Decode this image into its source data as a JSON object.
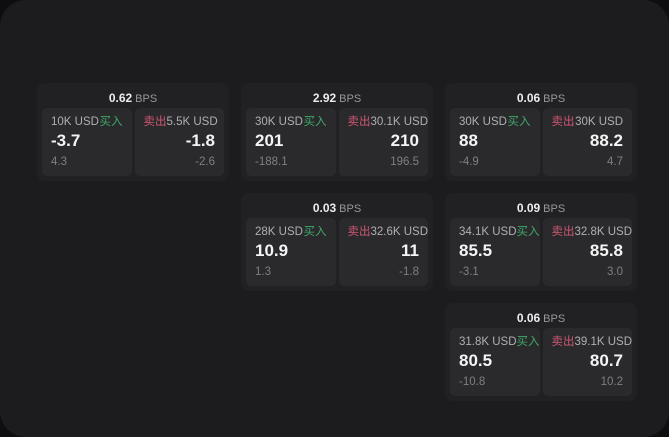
{
  "page": {
    "background": "#1c1c1e",
    "card_background": "#212124",
    "panel_background": "#2a2a2d"
  },
  "colors": {
    "buy_green": "#40a869",
    "sell_red": "#d05672",
    "value_white": "#f4f4f5",
    "label_gray": "#b0b0b4",
    "sub_gray": "#7f7f84"
  },
  "columns": [
    [
      {
        "bps": "0.62",
        "unit": "BPS",
        "buy_amount": "10K USD",
        "buy_label": "买入",
        "buy_value": "-3.7",
        "buy_sub": "4.3",
        "sell_label": "卖出",
        "sell_amount": "5.5K USD",
        "sell_value": "-1.8",
        "sell_sub": "-2.6"
      }
    ],
    [
      {
        "bps": "2.92",
        "unit": "BPS",
        "buy_amount": "30K USD",
        "buy_label": "买入",
        "buy_value": "201",
        "buy_sub": "-188.1",
        "sell_label": "卖出",
        "sell_amount": "30.1K USD",
        "sell_value": "210",
        "sell_sub": "196.5"
      },
      {
        "bps": "0.03",
        "unit": "BPS",
        "buy_amount": "28K USD",
        "buy_label": "买入",
        "buy_value": "10.9",
        "buy_sub": "1.3",
        "sell_label": "卖出",
        "sell_amount": "32.6K USD",
        "sell_value": "11",
        "sell_sub": "-1.8"
      }
    ],
    [
      {
        "bps": "0.06",
        "unit": "BPS",
        "buy_amount": "30K USD",
        "buy_label": "买入",
        "buy_value": "88",
        "buy_sub": "-4.9",
        "sell_label": "卖出",
        "sell_amount": "30K USD",
        "sell_value": "88.2",
        "sell_sub": "4.7"
      },
      {
        "bps": "0.09",
        "unit": "BPS",
        "buy_amount": "34.1K USD",
        "buy_label": "买入",
        "buy_value": "85.5",
        "buy_sub": "-3.1",
        "sell_label": "卖出",
        "sell_amount": "32.8K USD",
        "sell_value": "85.8",
        "sell_sub": "3.0"
      },
      {
        "bps": "0.06",
        "unit": "BPS",
        "buy_amount": "31.8K USD",
        "buy_label": "买入",
        "buy_value": "80.5",
        "buy_sub": "-10.8",
        "sell_label": "卖出",
        "sell_amount": "39.1K USD",
        "sell_value": "80.7",
        "sell_sub": "10.2"
      }
    ]
  ]
}
